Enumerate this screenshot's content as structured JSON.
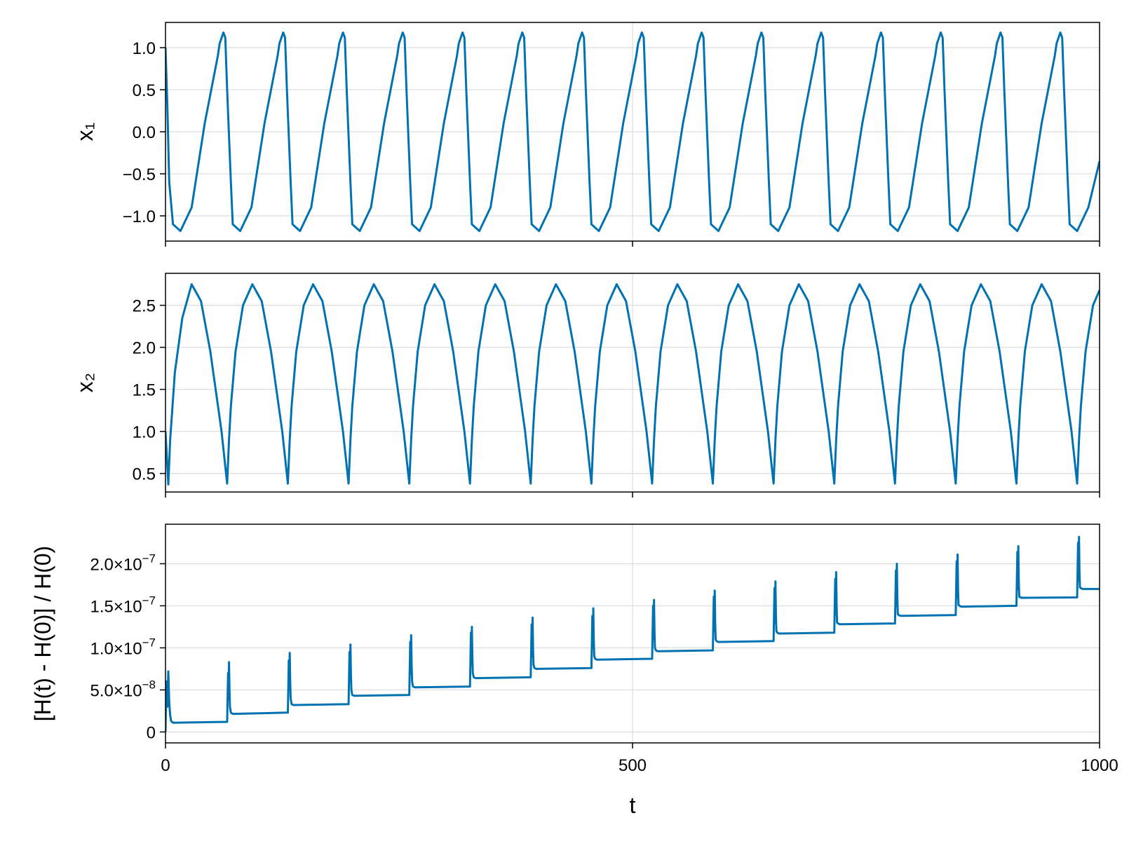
{
  "chart_data": [
    {
      "type": "line",
      "ylabel": "x₁",
      "xlim": [
        0,
        1000
      ],
      "ylim": [
        -1.3,
        1.3
      ],
      "yticks": [
        1.0,
        0.5,
        0.0,
        -0.5,
        -1.0
      ],
      "ytick_labels": [
        "1.0",
        "0.5",
        "0.0",
        "−0.5",
        "−1.0"
      ],
      "xticks": [
        0,
        500,
        1000
      ],
      "grid": true,
      "color": "#0072b2",
      "series": [
        {
          "x": [
            0,
            2,
            4,
            8,
            16,
            28,
            42,
            56,
            58,
            62,
            64,
            66,
            70,
            72,
            80,
            92,
            106,
            120,
            122,
            126,
            128,
            130,
            134,
            136,
            144,
            156,
            170,
            184,
            186,
            190,
            192,
            194,
            198,
            200,
            208,
            220,
            234,
            248,
            250,
            254,
            256,
            258,
            262,
            264,
            272,
            284,
            298,
            312,
            314,
            318,
            320,
            322,
            326,
            328,
            336,
            348,
            362,
            376,
            378,
            382,
            384,
            386,
            390,
            392,
            400,
            412,
            426,
            440,
            442,
            446,
            448,
            450,
            454,
            456,
            464,
            476,
            490,
            504,
            506,
            510,
            512,
            514,
            518,
            520,
            528,
            540,
            554,
            568,
            570,
            574,
            576,
            578,
            582,
            584,
            592,
            604,
            618,
            632,
            634,
            638,
            640,
            642,
            646,
            648,
            656,
            668,
            682,
            696,
            698,
            702,
            704,
            706,
            710,
            712,
            720,
            732,
            746,
            760,
            762,
            766,
            768,
            770,
            774,
            776,
            784,
            796,
            810,
            824,
            826,
            830,
            832,
            834,
            838,
            840,
            848,
            860,
            874,
            888,
            890,
            894,
            896,
            898,
            902,
            904,
            912,
            924,
            938,
            952,
            954,
            958,
            960,
            962,
            966,
            968,
            976,
            988,
            1000
          ],
          "y": [
            1.0,
            0.3,
            -0.6,
            -1.1,
            -1.18,
            -0.9,
            0.1,
            0.9,
            1.05,
            1.18,
            1.12,
            0.5,
            -0.6,
            -1.1,
            -1.18,
            -0.9,
            0.1,
            0.9,
            1.05,
            1.18,
            1.12,
            0.5,
            -0.6,
            -1.1,
            -1.18,
            -0.9,
            0.1,
            0.9,
            1.05,
            1.18,
            1.12,
            0.5,
            -0.6,
            -1.1,
            -1.18,
            -0.9,
            0.1,
            0.9,
            1.05,
            1.18,
            1.12,
            0.5,
            -0.6,
            -1.1,
            -1.18,
            -0.9,
            0.1,
            0.9,
            1.05,
            1.18,
            1.12,
            0.5,
            -0.6,
            -1.1,
            -1.18,
            -0.9,
            0.1,
            0.9,
            1.05,
            1.18,
            1.12,
            0.5,
            -0.6,
            -1.1,
            -1.18,
            -0.9,
            0.1,
            0.9,
            1.05,
            1.18,
            1.12,
            0.5,
            -0.6,
            -1.1,
            -1.18,
            -0.9,
            0.1,
            0.9,
            1.05,
            1.18,
            1.12,
            0.5,
            -0.6,
            -1.1,
            -1.18,
            -0.9,
            0.1,
            0.9,
            1.05,
            1.18,
            1.12,
            0.5,
            -0.6,
            -1.1,
            -1.18,
            -0.9,
            0.1,
            0.9,
            1.05,
            1.18,
            1.12,
            0.5,
            -0.6,
            -1.1,
            -1.18,
            -0.9,
            0.1,
            0.9,
            1.05,
            1.18,
            1.12,
            0.5,
            -0.6,
            -1.1,
            -1.18,
            -0.9,
            0.1,
            0.9,
            1.05,
            1.18,
            1.12,
            0.5,
            -0.6,
            -1.1,
            -1.18,
            -0.9,
            0.1,
            0.9,
            1.05,
            1.18,
            1.12,
            0.5,
            -0.6,
            -1.1,
            -1.18,
            -0.9,
            0.1,
            0.9,
            1.05,
            1.18,
            1.12,
            0.5,
            -0.6,
            -1.1,
            -1.18,
            -0.9,
            0.1,
            0.9,
            1.05,
            1.18,
            1.12,
            0.5,
            -0.6,
            -1.1,
            -1.18,
            -0.9,
            -0.35
          ]
        }
      ]
    },
    {
      "type": "line",
      "ylabel": "x₂",
      "xlim": [
        0,
        1000
      ],
      "ylim": [
        0.28,
        2.88
      ],
      "yticks": [
        2.5,
        2.0,
        1.5,
        1.0,
        0.5
      ],
      "ytick_labels": [
        "2.5",
        "2.0",
        "1.5",
        "1.0",
        "0.5"
      ],
      "xticks": [
        0,
        500,
        1000
      ],
      "grid": true,
      "color": "#0072b2",
      "series": [
        {
          "x": [
            0,
            3,
            5,
            10,
            18,
            28,
            38,
            48,
            60,
            66,
            68,
            70,
            75,
            83,
            93,
            103,
            113,
            125,
            131,
            133,
            135,
            140,
            148,
            158,
            168,
            178,
            190,
            196,
            198,
            200,
            205,
            213,
            223,
            233,
            243,
            255,
            261,
            263,
            265,
            270,
            278,
            288,
            298,
            308,
            320,
            326,
            328,
            330,
            335,
            343,
            353,
            363,
            373,
            385,
            391,
            393,
            395,
            400,
            408,
            418,
            428,
            438,
            450,
            456,
            458,
            460,
            465,
            473,
            483,
            493,
            503,
            515,
            521,
            523,
            525,
            530,
            538,
            548,
            558,
            568,
            580,
            586,
            588,
            590,
            595,
            603,
            613,
            623,
            633,
            645,
            651,
            653,
            655,
            660,
            668,
            678,
            688,
            698,
            710,
            716,
            718,
            720,
            725,
            733,
            743,
            753,
            763,
            775,
            781,
            783,
            785,
            790,
            798,
            808,
            818,
            828,
            840,
            846,
            848,
            850,
            855,
            863,
            873,
            883,
            893,
            905,
            911,
            913,
            915,
            920,
            928,
            938,
            948,
            958,
            970,
            976,
            978,
            980,
            985,
            993,
            1000
          ],
          "y": [
            1.0,
            0.37,
            0.9,
            1.7,
            2.35,
            2.75,
            2.55,
            1.95,
            1.0,
            0.38,
            0.9,
            1.3,
            1.95,
            2.5,
            2.75,
            2.55,
            1.95,
            1.0,
            0.38,
            0.9,
            1.3,
            1.95,
            2.5,
            2.75,
            2.55,
            1.95,
            1.0,
            0.38,
            0.9,
            1.3,
            1.95,
            2.5,
            2.75,
            2.55,
            1.95,
            1.0,
            0.38,
            0.9,
            1.3,
            1.95,
            2.5,
            2.75,
            2.55,
            1.95,
            1.0,
            0.38,
            0.9,
            1.3,
            1.95,
            2.5,
            2.75,
            2.55,
            1.95,
            1.0,
            0.38,
            0.9,
            1.3,
            1.95,
            2.5,
            2.75,
            2.55,
            1.95,
            1.0,
            0.38,
            0.9,
            1.3,
            1.95,
            2.5,
            2.75,
            2.55,
            1.95,
            1.0,
            0.38,
            0.9,
            1.3,
            1.95,
            2.5,
            2.75,
            2.55,
            1.95,
            1.0,
            0.38,
            0.9,
            1.3,
            1.95,
            2.5,
            2.75,
            2.55,
            1.95,
            1.0,
            0.38,
            0.9,
            1.3,
            1.95,
            2.5,
            2.75,
            2.55,
            1.95,
            1.0,
            0.38,
            0.9,
            1.3,
            1.95,
            2.5,
            2.75,
            2.55,
            1.95,
            1.0,
            0.38,
            0.9,
            1.3,
            1.95,
            2.5,
            2.75,
            2.55,
            1.95,
            1.0,
            0.38,
            0.9,
            1.3,
            1.95,
            2.5,
            2.75,
            2.55,
            1.95,
            1.0,
            0.38,
            0.9,
            1.3,
            1.95,
            2.5,
            2.75,
            2.55,
            1.95,
            1.0,
            0.38,
            0.9,
            1.3,
            1.95,
            2.5,
            2.68
          ]
        }
      ]
    },
    {
      "type": "line",
      "xlabel": "t",
      "ylabel": "[H(t) - H(0)] / H(0)",
      "xlim": [
        0,
        1000
      ],
      "ylim": [
        -1.3e-08,
        2.47e-07
      ],
      "yticks": [
        2e-07,
        1.5e-07,
        1e-07,
        5e-08,
        0
      ],
      "ytick_labels": [
        {
          "mantissa": "2.0",
          "exponent": "−7"
        },
        {
          "mantissa": "1.5",
          "exponent": "−7"
        },
        {
          "mantissa": "1.0",
          "exponent": "−7"
        },
        {
          "mantissa": "5.0",
          "exponent": "−8"
        },
        {
          "mantissa": "0",
          "exponent": ""
        }
      ],
      "xticks": [
        0,
        500,
        1000
      ],
      "xtick_labels": [
        "0",
        "500",
        "1000"
      ],
      "grid": true,
      "color": "#0072b2",
      "series": [
        {
          "x": [
            0,
            1,
            2,
            3,
            4,
            5,
            6,
            8,
            66,
            67,
            67.5,
            68,
            68.5,
            69,
            70,
            72,
            131,
            132,
            132.5,
            133,
            133.5,
            134,
            135,
            137,
            196,
            197,
            197.5,
            198,
            198.5,
            199,
            200,
            202,
            261,
            262,
            262.5,
            263,
            263.5,
            264,
            265,
            267,
            326,
            327,
            327.5,
            328,
            328.5,
            329,
            330,
            332,
            391,
            392,
            392.5,
            393,
            393.5,
            394,
            395,
            397,
            456,
            457,
            457.5,
            458,
            458.5,
            459,
            460,
            462,
            521,
            522,
            522.5,
            523,
            523.5,
            524,
            525,
            527,
            586,
            587,
            587.5,
            588,
            588.5,
            589,
            590,
            592,
            651,
            652,
            652.5,
            653,
            653.5,
            654,
            655,
            657,
            716,
            717,
            717.5,
            718,
            718.5,
            719,
            720,
            722,
            781,
            782,
            782.5,
            783,
            783.5,
            784,
            785,
            787,
            846,
            847,
            847.5,
            848,
            848.5,
            849,
            850,
            852,
            911,
            912,
            912.5,
            913,
            913.5,
            914,
            915,
            917,
            976,
            977,
            977.5,
            978,
            978.5,
            979,
            980,
            982,
            1000
          ],
          "y": [
            0,
            6e-08,
            3e-08,
            7.2e-08,
            3.5e-08,
            2e-08,
            1.3e-08,
            1.1e-08,
            1.2e-08,
            7e-08,
            4e-08,
            8.3e-08,
            5e-08,
            3e-08,
            2.3e-08,
            2.15e-08,
            2.3e-08,
            8.5e-08,
            5e-08,
            9.4e-08,
            6e-08,
            4e-08,
            3.3e-08,
            3.2e-08,
            3.3e-08,
            9.5e-08,
            6e-08,
            1.04e-07,
            7e-08,
            5e-08,
            4.4e-08,
            4.3e-08,
            4.4e-08,
            1.07e-07,
            7e-08,
            1.15e-07,
            8e-08,
            6e-08,
            5.4e-08,
            5.3e-08,
            5.4e-08,
            1.18e-07,
            8e-08,
            1.25e-07,
            9e-08,
            7e-08,
            6.5e-08,
            6.4e-08,
            6.5e-08,
            1.28e-07,
            9e-08,
            1.36e-07,
            1e-07,
            8e-08,
            7.6e-08,
            7.5e-08,
            7.6e-08,
            1.38e-07,
            1e-07,
            1.47e-07,
            1.1e-07,
            9e-08,
            8.7e-08,
            8.6e-08,
            8.7e-08,
            1.5e-07,
            1.1e-07,
            1.57e-07,
            1.2e-07,
            1e-07,
            9.7e-08,
            9.6e-08,
            9.7e-08,
            1.61e-07,
            1.2e-07,
            1.68e-07,
            1.3e-07,
            1.1e-07,
            1.08e-07,
            1.07e-07,
            1.08e-07,
            1.71e-07,
            1.3e-07,
            1.79e-07,
            1.4e-07,
            1.2e-07,
            1.18e-07,
            1.17e-07,
            1.18e-07,
            1.82e-07,
            1.4e-07,
            1.9e-07,
            1.5e-07,
            1.3e-07,
            1.29e-07,
            1.28e-07,
            1.29e-07,
            1.92e-07,
            1.5e-07,
            2e-07,
            1.6e-07,
            1.4e-07,
            1.39e-07,
            1.38e-07,
            1.39e-07,
            2.03e-07,
            1.6e-07,
            2.11e-07,
            1.7e-07,
            1.51e-07,
            1.5e-07,
            1.49e-07,
            1.5e-07,
            2.14e-07,
            1.7e-07,
            2.21e-07,
            1.8e-07,
            1.61e-07,
            1.6e-07,
            1.595e-07,
            1.6e-07,
            2.25e-07,
            1.8e-07,
            2.32e-07,
            1.9e-07,
            1.72e-07,
            1.71e-07,
            1.7e-07,
            1.7e-07
          ]
        }
      ]
    }
  ]
}
